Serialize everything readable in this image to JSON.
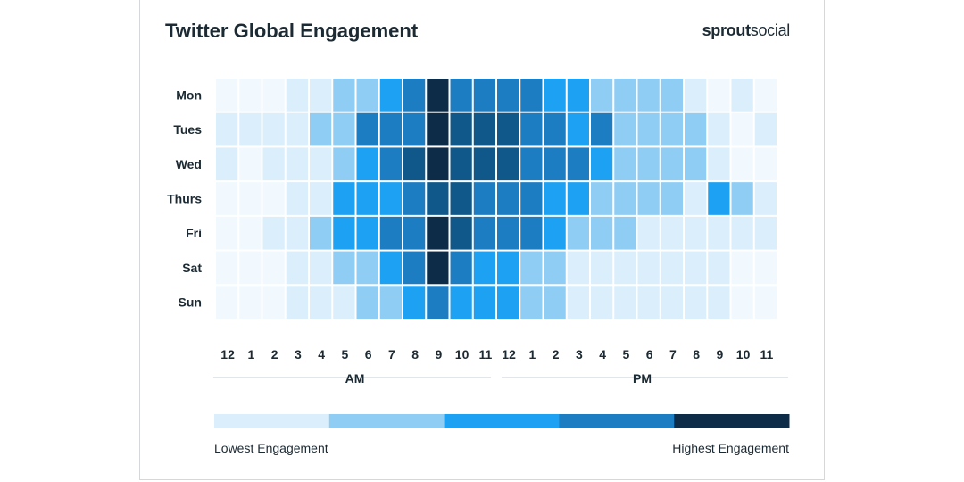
{
  "header": {
    "title": "Twitter Global Engagement",
    "logo_bold": "sprout",
    "logo_regular": "social"
  },
  "palette": [
    "#f1f9fe",
    "#daeefb",
    "#8fcdf5",
    "#1da1f2",
    "#1c7dc3",
    "#0f5889",
    "#0c2c47"
  ],
  "chart_data": {
    "type": "heatmap",
    "title": "Twitter Global Engagement",
    "rows": [
      "Mon",
      "Tues",
      "Wed",
      "Thurs",
      "Fri",
      "Sat",
      "Sun"
    ],
    "columns": [
      "12",
      "1",
      "2",
      "3",
      "4",
      "5",
      "6",
      "7",
      "8",
      "9",
      "10",
      "11",
      "12",
      "1",
      "2",
      "3",
      "4",
      "5",
      "6",
      "7",
      "8",
      "9",
      "10",
      "11"
    ],
    "column_groups": [
      {
        "label": "AM",
        "span": 12
      },
      {
        "label": "PM",
        "span": 12
      }
    ],
    "value_scale": "0 = lowest engagement, 6 = highest engagement",
    "values": [
      [
        0,
        0,
        0,
        1,
        1,
        2,
        2,
        3,
        4,
        6,
        4,
        4,
        4,
        4,
        3,
        3,
        2,
        2,
        2,
        2,
        1,
        0,
        1,
        0
      ],
      [
        1,
        1,
        1,
        1,
        2,
        2,
        4,
        4,
        4,
        6,
        5,
        5,
        5,
        4,
        4,
        3,
        4,
        2,
        2,
        2,
        2,
        1,
        0,
        1
      ],
      [
        1,
        0,
        1,
        1,
        1,
        2,
        3,
        4,
        5,
        6,
        5,
        5,
        5,
        4,
        4,
        4,
        3,
        2,
        2,
        2,
        2,
        1,
        0,
        0
      ],
      [
        0,
        0,
        0,
        1,
        1,
        3,
        3,
        3,
        4,
        5,
        5,
        4,
        4,
        4,
        3,
        3,
        2,
        2,
        2,
        2,
        1,
        3,
        2,
        1
      ],
      [
        0,
        0,
        1,
        1,
        2,
        3,
        3,
        4,
        4,
        6,
        5,
        4,
        4,
        4,
        3,
        2,
        2,
        2,
        1,
        1,
        1,
        1,
        1,
        1
      ],
      [
        0,
        0,
        0,
        1,
        1,
        2,
        2,
        3,
        4,
        6,
        4,
        3,
        3,
        2,
        2,
        1,
        1,
        1,
        1,
        1,
        1,
        1,
        0,
        0
      ],
      [
        0,
        0,
        0,
        1,
        1,
        1,
        2,
        2,
        3,
        4,
        3,
        3,
        3,
        2,
        2,
        1,
        1,
        1,
        1,
        1,
        1,
        1,
        0,
        0
      ]
    ],
    "legend": {
      "steps": 5,
      "low_label": "Lowest Engagement",
      "high_label": "Highest Engagement"
    }
  }
}
